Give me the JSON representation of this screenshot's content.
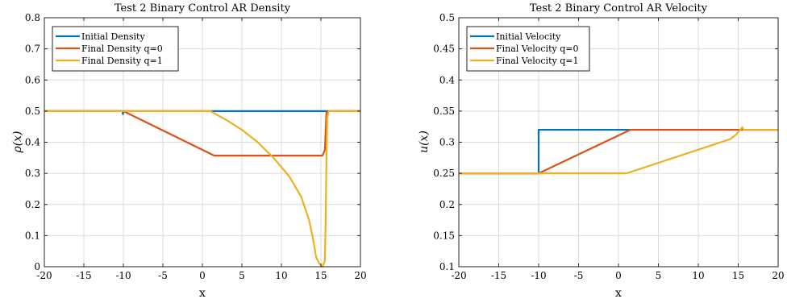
{
  "chart_data": [
    {
      "type": "line",
      "title": "Test 2 Binary Control AR Density",
      "xlabel": "x",
      "ylabel": "ρ(x)",
      "xlim": [
        -20,
        20
      ],
      "ylim": [
        0,
        0.8
      ],
      "xticks": [
        -20,
        -15,
        -10,
        -5,
        0,
        5,
        10,
        15,
        20
      ],
      "yticks": [
        0,
        0.1,
        0.2,
        0.3,
        0.4,
        0.5,
        0.6,
        0.7,
        0.8
      ],
      "xtick_labels": [
        "-20",
        "-15",
        "-10",
        "-5",
        "0",
        "5",
        "10",
        "15",
        "20"
      ],
      "ytick_labels": [
        "0",
        "0.1",
        "0.2",
        "0.3",
        "0.4",
        "0.5",
        "0.6",
        "0.7",
        "0.8"
      ],
      "grid": true,
      "legend_position": "top-left",
      "series": [
        {
          "name": "Initial Density",
          "color": "#0072BD",
          "points": [
            [
              -20,
              0.5
            ],
            [
              -10.1,
              0.5
            ],
            [
              -10.05,
              0.49
            ],
            [
              -10,
              0.5
            ],
            [
              20,
              0.5
            ]
          ]
        },
        {
          "name": "Final Density q=0",
          "color": "#D95319",
          "points": [
            [
              -20,
              0.5
            ],
            [
              -10,
              0.5
            ],
            [
              1.5,
              0.357
            ],
            [
              15.2,
              0.357
            ],
            [
              15.5,
              0.375
            ],
            [
              15.7,
              0.495
            ],
            [
              16,
              0.5
            ],
            [
              20,
              0.5
            ]
          ]
        },
        {
          "name": "Final Density q=1",
          "color": "#EDB120",
          "points": [
            [
              -20,
              0.5
            ],
            [
              1,
              0.5
            ],
            [
              3,
              0.472
            ],
            [
              5,
              0.44
            ],
            [
              7,
              0.4
            ],
            [
              9,
              0.35
            ],
            [
              11,
              0.29
            ],
            [
              12.5,
              0.225
            ],
            [
              13.5,
              0.15
            ],
            [
              14,
              0.09
            ],
            [
              14.4,
              0.03
            ],
            [
              14.8,
              0.01
            ],
            [
              15.2,
              0.0
            ],
            [
              15.5,
              0.02
            ],
            [
              15.6,
              0.15
            ],
            [
              15.7,
              0.35
            ],
            [
              15.8,
              0.48
            ],
            [
              16,
              0.5
            ],
            [
              20,
              0.5
            ]
          ]
        }
      ]
    },
    {
      "type": "line",
      "title": "Test 2 Binary Control AR Velocity",
      "xlabel": "x",
      "ylabel": "u(x)",
      "xlim": [
        -20,
        20
      ],
      "ylim": [
        0.1,
        0.5
      ],
      "xticks": [
        -20,
        -15,
        -10,
        -5,
        0,
        5,
        10,
        15,
        20
      ],
      "yticks": [
        0.1,
        0.15,
        0.2,
        0.25,
        0.3,
        0.35,
        0.4,
        0.45,
        0.5
      ],
      "xtick_labels": [
        "-20",
        "-15",
        "-10",
        "-5",
        "0",
        "5",
        "10",
        "15",
        "20"
      ],
      "ytick_labels": [
        "0.1",
        "0.15",
        "0.2",
        "0.25",
        "0.3",
        "0.35",
        "0.4",
        "0.45",
        "0.5"
      ],
      "grid": true,
      "legend_position": "top-left",
      "series": [
        {
          "name": "Initial Velocity",
          "color": "#0072BD",
          "points": [
            [
              -20,
              0.25
            ],
            [
              -10,
              0.25
            ],
            [
              -10,
              0.32
            ],
            [
              20,
              0.32
            ]
          ]
        },
        {
          "name": "Final Velocity q=0",
          "color": "#D95319",
          "points": [
            [
              -20,
              0.25
            ],
            [
              -10,
              0.25
            ],
            [
              1.5,
              0.32
            ],
            [
              20,
              0.32
            ]
          ]
        },
        {
          "name": "Final Velocity q=1",
          "color": "#EDB120",
          "points": [
            [
              -20,
              0.25
            ],
            [
              1,
              0.25
            ],
            [
              14,
              0.305
            ],
            [
              14.8,
              0.313
            ],
            [
              15.5,
              0.324
            ],
            [
              15.7,
              0.32
            ],
            [
              20,
              0.32
            ]
          ]
        }
      ]
    }
  ]
}
